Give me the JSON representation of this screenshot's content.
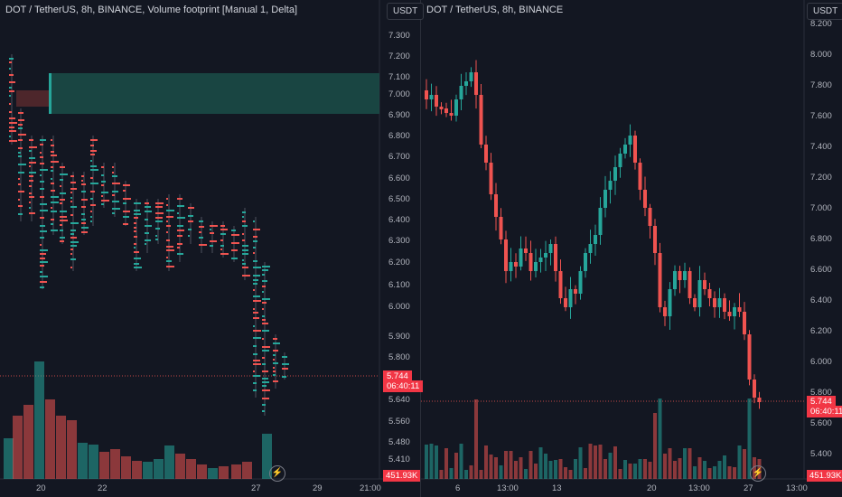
{
  "left_chart": {
    "legend": "DOT / TetherUS, 8h, BINANCE, Volume footprint [Manual 1, Delta]",
    "currency": "USDT",
    "price_axis": [
      "7.300",
      "7.200",
      "7.100",
      "7.000",
      "6.900",
      "6.800",
      "6.700",
      "6.600",
      "6.500",
      "6.400",
      "6.300",
      "6.200",
      "6.100",
      "6.000",
      "5.900",
      "5.800",
      "5.640",
      "5.560",
      "5.480",
      "5.410"
    ],
    "time_axis": [
      "20",
      "22",
      "27",
      "29",
      "21:00"
    ],
    "last_price": "5.744",
    "countdown": "06:40:11",
    "volume_label": "451.93K",
    "colors": {
      "up": "#26a69a",
      "down": "#ef5350",
      "zone": "#1b4e48"
    }
  },
  "right_chart": {
    "legend": "DOT / TetherUS, 8h, BINANCE",
    "currency": "USDT",
    "price_axis": [
      "8.200",
      "8.000",
      "7.800",
      "7.600",
      "7.400",
      "7.200",
      "7.000",
      "6.800",
      "6.600",
      "6.400",
      "6.200",
      "6.000",
      "5.800",
      "5.600",
      "5.400"
    ],
    "time_axis": [
      "6",
      "13:00",
      "13",
      "20",
      "13:00",
      "27",
      "13:00"
    ],
    "last_price": "5.744",
    "countdown": "06:40:11",
    "volume_label": "451.93K"
  }
}
